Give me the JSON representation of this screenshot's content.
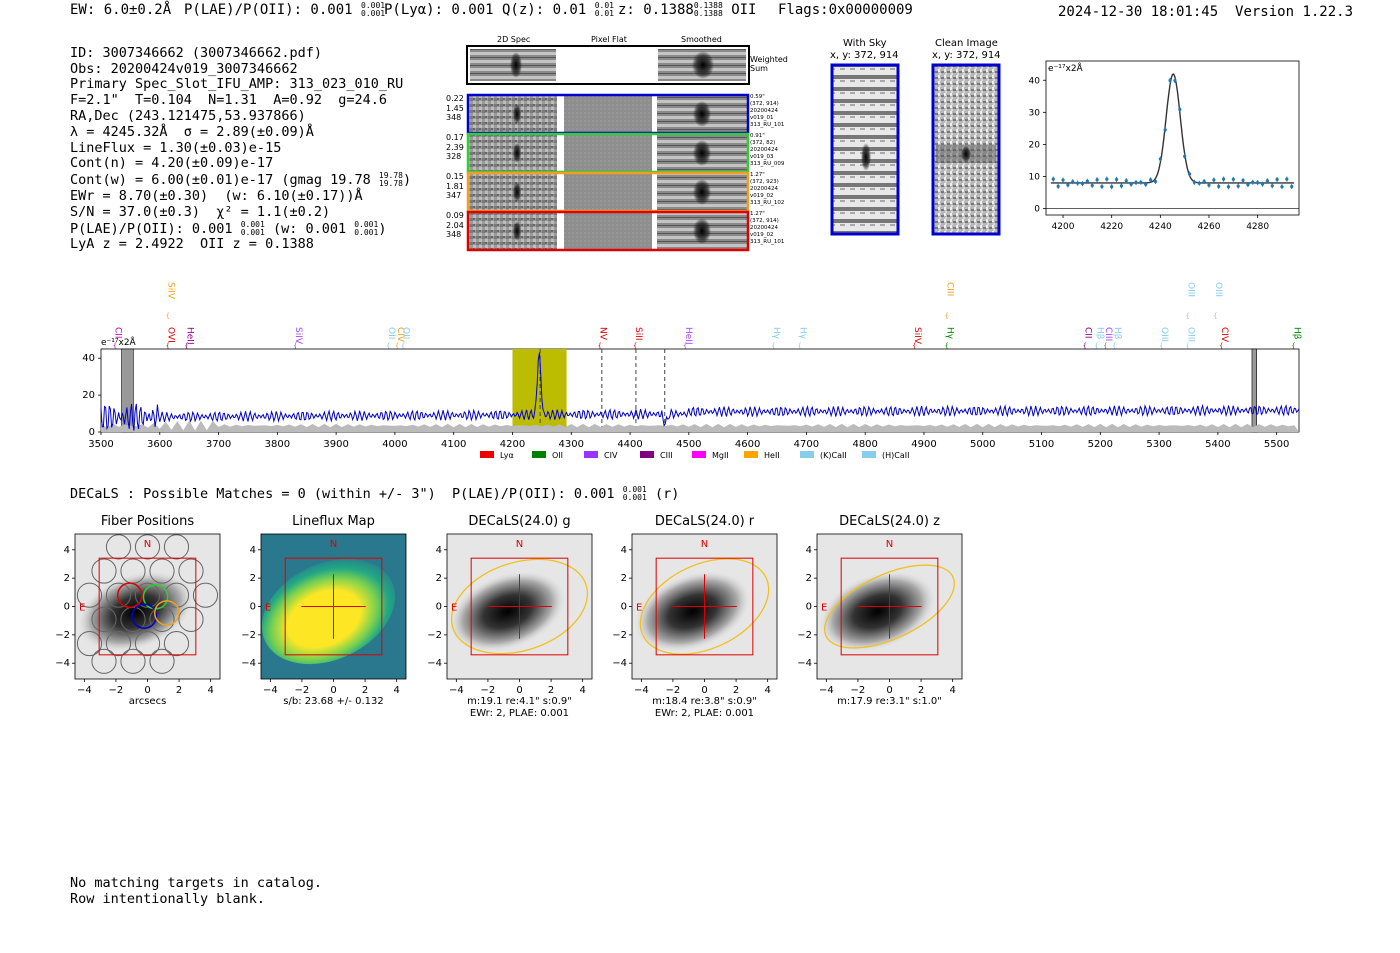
{
  "header": {
    "ew": "EW: 6.0±0.2Å",
    "plae_label": "P(LAE)/P(OII): 0.001",
    "plae_up": "0.001",
    "plae_dn": "0.001",
    "plya": "P(Lyα): 0.001",
    "qz_label": "Q(z): 0.01",
    "qz_up": "0.01",
    "qz_dn": "0.01",
    "z_label": "z: 0.1388",
    "z_up": "0.1388",
    "z_dn": "0.1388",
    "z_line": "OII",
    "flags": "Flags:0x00000009",
    "timestamp": "2024-12-30 18:01:45",
    "version": "Version 1.22.3"
  },
  "info": {
    "id": "ID: 3007346662 (3007346662.pdf)",
    "obs": "Obs: 20200424v019_3007346662",
    "primary": "Primary Spec_Slot_IFU_AMP: 313_023_010_RU",
    "params": "F=2.1\"  T=0.104  N=1.31  A=0.92  g=24.6",
    "radec": "RA,Dec (243.121475,53.937866)",
    "lambda": "λ = 4245.32Å  σ = 2.89(±0.09)Å",
    "lineflux": "LineFlux = 1.30(±0.03)e-15",
    "contn": "Cont(n) = 4.20(±0.09)e-17",
    "contw": "Cont(w) = 6.00(±0.01)e-17 (gmag 19.78",
    "contw_up": "19.78",
    "contw_dn": "19.78",
    "contw_end": ")",
    "ewr": "EWr = 8.70(±0.30)  (w: 6.10(±0.17))Å",
    "sn": "S/N = 37.0(±0.3)  χ² = 1.1(±0.2)",
    "plae": "P(LAE)/P(OII): 0.001",
    "plae_up": "0.001",
    "plae_dn": "0.001",
    "plae_w": "(w: 0.001",
    "plae_w_up": "0.001",
    "plae_w_dn": "0.001",
    "plae_w_end": ")",
    "lya": "LyA z = 2.4922  OII z = 0.1388"
  },
  "cutouts": {
    "col_2d": "2D Spec",
    "col_flat": "Pixel Flat",
    "col_smooth": "Smoothed",
    "weighted": "Weighted\nSum",
    "rows": [
      {
        "left": [
          "0.22",
          "1.45",
          "348"
        ],
        "right": [
          "0.59\"",
          "(372, 914)",
          "20200424",
          "v019_01",
          "313_RU_101"
        ],
        "color": "#0000cc"
      },
      {
        "left": [
          "0.17",
          "2.39",
          "328"
        ],
        "right": [
          "0.91\"",
          "(372, 82)",
          "20200424",
          "v019_03",
          "313_RU_009"
        ],
        "color": "#33cc33"
      },
      {
        "left": [
          "0.15",
          "1.81",
          "347"
        ],
        "right": [
          "1.27\"",
          "(372, 923)",
          "20200424",
          "v019_02",
          "313_RU_102"
        ],
        "color": "#f0a020"
      },
      {
        "left": [
          "0.09",
          "2.04",
          "348"
        ],
        "right": [
          "1.27\"",
          "(372, 914)",
          "20200424",
          "v019_02",
          "313_RU_101"
        ],
        "color": "#dd0000"
      }
    ]
  },
  "sky": {
    "with_sky": "With Sky",
    "with_sky_xy": "x, y: 372, 914",
    "clean": "Clean Image",
    "clean_xy": "x, y: 372, 914"
  },
  "fit_plot": {
    "unit_label": "e⁻¹⁷x2Å",
    "x_ticks": [
      "4200",
      "4220",
      "4240",
      "4260",
      "4280"
    ],
    "y_ticks": [
      "0",
      "10",
      "20",
      "30",
      "40"
    ]
  },
  "spectrum": {
    "unit_label": "e⁻¹⁷x2Å",
    "x_ticks": [
      "3500",
      "3600",
      "3700",
      "3800",
      "3900",
      "4000",
      "4100",
      "4200",
      "4300",
      "4400",
      "4500",
      "4600",
      "4700",
      "4800",
      "4900",
      "5000",
      "5100",
      "5200",
      "5300",
      "5400",
      "5500"
    ],
    "y_ticks": [
      "0",
      "20",
      "40"
    ],
    "line_marks": [
      {
        "w": 3525,
        "t": "CII",
        "c": "#cc00cc",
        "row": 1
      },
      {
        "w": 3615,
        "t": "OVI",
        "c": "#dd0000",
        "row": 1
      },
      {
        "w": 3647,
        "t": "HeII",
        "c": "#880088",
        "row": 1
      },
      {
        "w": 3615,
        "t": "SiIV",
        "c": "#f0a020",
        "row": 0
      },
      {
        "w": 3832,
        "t": "SiIV",
        "c": "#aa44ff",
        "row": 1
      },
      {
        "w": 3990,
        "t": "OII",
        "c": "#88ccee",
        "row": 1
      },
      {
        "w": 4005,
        "t": "CIV",
        "c": "#f0a020",
        "row": 1
      },
      {
        "w": 4015,
        "t": "OII",
        "c": "#88ccee",
        "row": 1
      },
      {
        "w": 4350,
        "t": "NV",
        "c": "#dd0000",
        "row": 1
      },
      {
        "w": 4410,
        "t": "SiII",
        "c": "#dd0000",
        "row": 1
      },
      {
        "w": 4495,
        "t": "HeII",
        "c": "#aa44ff",
        "row": 1
      },
      {
        "w": 4645,
        "t": "Hγ",
        "c": "#88ccee",
        "row": 1
      },
      {
        "w": 4690,
        "t": "Hγ",
        "c": "#88ccee",
        "row": 1
      },
      {
        "w": 4885,
        "t": "SiIV",
        "c": "#dd0000",
        "row": 1
      },
      {
        "w": 4940,
        "t": "CIII",
        "c": "#f0a020",
        "row": 0
      },
      {
        "w": 4940,
        "t": "Hγ",
        "c": "#008800",
        "row": 1
      },
      {
        "w": 5175,
        "t": "CII",
        "c": "#880088",
        "row": 1
      },
      {
        "w": 5195,
        "t": "Hβ",
        "c": "#88ccee",
        "row": 1
      },
      {
        "w": 5210,
        "t": "CIII",
        "c": "#aa44ff",
        "row": 1
      },
      {
        "w": 5225,
        "t": "Hβ",
        "c": "#88ccee",
        "row": 1
      },
      {
        "w": 5305,
        "t": "OIII",
        "c": "#88ccee",
        "row": 1
      },
      {
        "w": 5350,
        "t": "OIII",
        "c": "#88ccee",
        "row": 0
      },
      {
        "w": 5350,
        "t": "OIII",
        "c": "#88ccee",
        "row": 1
      },
      {
        "w": 5397,
        "t": "OIII",
        "c": "#88ccee",
        "row": 0
      },
      {
        "w": 5407,
        "t": "CIV",
        "c": "#dd0000",
        "row": 1
      },
      {
        "w": 5530,
        "t": "Hβ",
        "c": "#008800",
        "row": 1
      }
    ],
    "legend": [
      {
        "t": "Lyα",
        "c": "#ee0000"
      },
      {
        "t": "OII",
        "c": "#008000"
      },
      {
        "t": "CIV",
        "c": "#9933ff"
      },
      {
        "t": "CIII",
        "c": "#800080"
      },
      {
        "t": "MgII",
        "c": "#ff00ff"
      },
      {
        "t": "HeII",
        "c": "#ffa500"
      },
      {
        "t": "(K)CaII",
        "c": "#87ceeb"
      },
      {
        "t": "(H)CaII",
        "c": "#87ceeb"
      }
    ]
  },
  "decals_header": {
    "text": "DECaLS : Possible Matches = 0 (within +/- 3\")  P(LAE)/P(OII): 0.001",
    "up": "0.001",
    "dn": "0.001",
    "end": "(r)"
  },
  "panels": [
    {
      "title": "Fiber Positions",
      "cap1": "arcsecs",
      "cap2": ""
    },
    {
      "title": "Lineflux Map",
      "cap1": "s/b: 23.68 +/- 0.132",
      "cap2": ""
    },
    {
      "title": "DECaLS(24.0) g",
      "cap1": "m:19.1  re:4.1\"  s:0.9\"",
      "cap2": "EWr: 2, PLAE: 0.001"
    },
    {
      "title": "DECaLS(24.0) r",
      "cap1": "m:18.4  re:3.8\"  s:0.9\"",
      "cap2": "EWr: 2, PLAE: 0.001"
    },
    {
      "title": "DECaLS(24.0) z",
      "cap1": "m:17.9  re:3.1\"  s:1.0\"",
      "cap2": ""
    }
  ],
  "panel_ticks": {
    "x": [
      "−4",
      "−2",
      "0",
      "2",
      "4"
    ],
    "y": [
      "4",
      "2",
      "0",
      "−2",
      "−4"
    ],
    "n": "N",
    "e": "E"
  },
  "footer": {
    "line1": "No matching targets in catalog.",
    "line2": "Row intentionally blank."
  }
}
